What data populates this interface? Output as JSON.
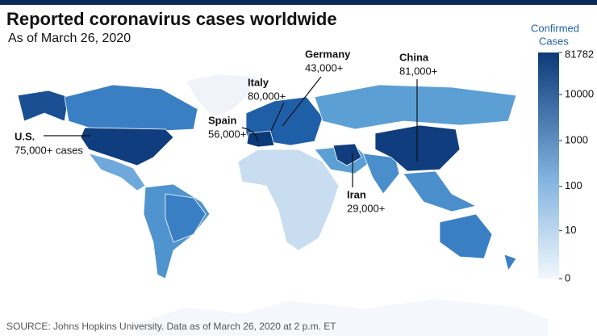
{
  "title": "Reported coronavirus cases worldwide",
  "subtitle": "As of March 26, 2020",
  "legend": {
    "title": [
      "Confirmed",
      "Cases"
    ],
    "range": [
      0,
      81782
    ],
    "scale": "log",
    "color_low": "#f2f7fd",
    "color_high": "#0b3a78",
    "ticks": [
      81782,
      10000,
      1000,
      100,
      10,
      0
    ]
  },
  "annotations": [
    {
      "label": "U.S.",
      "value": "75,000+ cases"
    },
    {
      "label": "Spain",
      "value": "56,000+"
    },
    {
      "label": "Italy",
      "value": "80,000+"
    },
    {
      "label": "Germany",
      "value": "43,000+"
    },
    {
      "label": "China",
      "value": "81,000+"
    },
    {
      "label": "Iran",
      "value": "29,000+"
    }
  ],
  "source": "SOURCE: Johns Hopkins University. Data as of March 26, 2020 at 2 p.m. ET"
}
